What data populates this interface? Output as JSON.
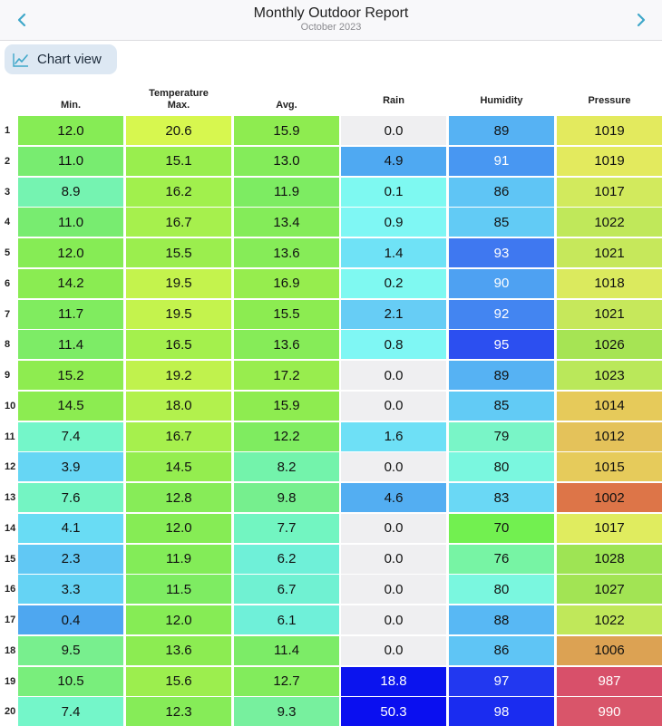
{
  "header": {
    "title": "Monthly Outdoor Report",
    "subtitle": "October 2023",
    "back_icon": "chevron-left-icon",
    "forward_icon": "chevron-right-icon",
    "accent": "#3fa7c9"
  },
  "toolbar": {
    "chart_view_label": "Chart view",
    "chart_icon": "line-chart-icon"
  },
  "table": {
    "group_header": "Temperature",
    "columns": [
      {
        "key": "min",
        "label": "Min."
      },
      {
        "key": "max",
        "label": "Max."
      },
      {
        "key": "avg",
        "label": "Avg."
      },
      {
        "key": "rain",
        "label": "Rain"
      },
      {
        "key": "humidity",
        "label": "Humidity"
      },
      {
        "key": "pressure",
        "label": "Pressure"
      }
    ],
    "rows": [
      {
        "day": "1",
        "cells": [
          {
            "v": "12.0",
            "bg": "#86ec55",
            "fg": "#111"
          },
          {
            "v": "20.6",
            "bg": "#d7f74f",
            "fg": "#111"
          },
          {
            "v": "15.9",
            "bg": "#8eec50",
            "fg": "#111"
          },
          {
            "v": "0.0",
            "bg": "#efeff1",
            "fg": "#111"
          },
          {
            "v": "89",
            "bg": "#56b2f3",
            "fg": "#111"
          },
          {
            "v": "1019",
            "bg": "#e3ea5e",
            "fg": "#111"
          }
        ]
      },
      {
        "day": "2",
        "cells": [
          {
            "v": "11.0",
            "bg": "#78ec70",
            "fg": "#111"
          },
          {
            "v": "15.1",
            "bg": "#99ee4e",
            "fg": "#111"
          },
          {
            "v": "13.0",
            "bg": "#84ec5a",
            "fg": "#111"
          },
          {
            "v": "4.9",
            "bg": "#4fa9f2",
            "fg": "#111"
          },
          {
            "v": "91",
            "bg": "#4897f2",
            "fg": "#ffffff"
          },
          {
            "v": "1019",
            "bg": "#e3ea5e",
            "fg": "#111"
          }
        ]
      },
      {
        "day": "3",
        "cells": [
          {
            "v": "8.9",
            "bg": "#75f3b1",
            "fg": "#111"
          },
          {
            "v": "16.2",
            "bg": "#a1f04d",
            "fg": "#111"
          },
          {
            "v": "11.9",
            "bg": "#7dec62",
            "fg": "#111"
          },
          {
            "v": "0.1",
            "bg": "#7ef9f1",
            "fg": "#111"
          },
          {
            "v": "86",
            "bg": "#5fc5f5",
            "fg": "#111"
          },
          {
            "v": "1017",
            "bg": "#d2ea5d",
            "fg": "#111"
          }
        ]
      },
      {
        "day": "4",
        "cells": [
          {
            "v": "11.0",
            "bg": "#78ec70",
            "fg": "#111"
          },
          {
            "v": "16.7",
            "bg": "#a6f04d",
            "fg": "#111"
          },
          {
            "v": "13.4",
            "bg": "#84ec59",
            "fg": "#111"
          },
          {
            "v": "0.9",
            "bg": "#7ff7f4",
            "fg": "#111"
          },
          {
            "v": "85",
            "bg": "#62cbf5",
            "fg": "#111"
          },
          {
            "v": "1022",
            "bg": "#c0e85a",
            "fg": "#111"
          }
        ]
      },
      {
        "day": "5",
        "cells": [
          {
            "v": "12.0",
            "bg": "#86ec55",
            "fg": "#111"
          },
          {
            "v": "15.5",
            "bg": "#9bee4e",
            "fg": "#111"
          },
          {
            "v": "13.6",
            "bg": "#86ec58",
            "fg": "#111"
          },
          {
            "v": "1.4",
            "bg": "#6fe2f6",
            "fg": "#111"
          },
          {
            "v": "93",
            "bg": "#3f78f0",
            "fg": "#ffffff"
          },
          {
            "v": "1021",
            "bg": "#c6e85b",
            "fg": "#111"
          }
        ]
      },
      {
        "day": "6",
        "cells": [
          {
            "v": "14.2",
            "bg": "#8aec52",
            "fg": "#111"
          },
          {
            "v": "19.5",
            "bg": "#c4f34d",
            "fg": "#111"
          },
          {
            "v": "16.9",
            "bg": "#96ed4e",
            "fg": "#111"
          },
          {
            "v": "0.2",
            "bg": "#7ff9f1",
            "fg": "#111"
          },
          {
            "v": "90",
            "bg": "#4ea1f2",
            "fg": "#ffffff"
          },
          {
            "v": "1018",
            "bg": "#dbea5e",
            "fg": "#111"
          }
        ]
      },
      {
        "day": "7",
        "cells": [
          {
            "v": "11.7",
            "bg": "#80ec5f",
            "fg": "#111"
          },
          {
            "v": "19.5",
            "bg": "#c4f34d",
            "fg": "#111"
          },
          {
            "v": "15.5",
            "bg": "#8cec51",
            "fg": "#111"
          },
          {
            "v": "2.1",
            "bg": "#67cdf5",
            "fg": "#111"
          },
          {
            "v": "92",
            "bg": "#4385f1",
            "fg": "#ffffff"
          },
          {
            "v": "1021",
            "bg": "#c6e85b",
            "fg": "#111"
          }
        ]
      },
      {
        "day": "8",
        "cells": [
          {
            "v": "11.4",
            "bg": "#7dec66",
            "fg": "#111"
          },
          {
            "v": "16.5",
            "bg": "#a4f04d",
            "fg": "#111"
          },
          {
            "v": "13.6",
            "bg": "#86ec58",
            "fg": "#111"
          },
          {
            "v": "0.8",
            "bg": "#7ff7f4",
            "fg": "#111"
          },
          {
            "v": "95",
            "bg": "#2c4ff0",
            "fg": "#ffffff"
          },
          {
            "v": "1026",
            "bg": "#a6e454",
            "fg": "#111"
          }
        ]
      },
      {
        "day": "9",
        "cells": [
          {
            "v": "15.2",
            "bg": "#8eec50",
            "fg": "#111"
          },
          {
            "v": "19.2",
            "bg": "#c0f24d",
            "fg": "#111"
          },
          {
            "v": "17.2",
            "bg": "#98ed4e",
            "fg": "#111"
          },
          {
            "v": "0.0",
            "bg": "#efeff1",
            "fg": "#111"
          },
          {
            "v": "89",
            "bg": "#56b2f3",
            "fg": "#111"
          },
          {
            "v": "1023",
            "bg": "#bae85a",
            "fg": "#111"
          }
        ]
      },
      {
        "day": "10",
        "cells": [
          {
            "v": "14.5",
            "bg": "#8cec51",
            "fg": "#111"
          },
          {
            "v": "18.0",
            "bg": "#b2f14d",
            "fg": "#111"
          },
          {
            "v": "15.9",
            "bg": "#8eec50",
            "fg": "#111"
          },
          {
            "v": "0.0",
            "bg": "#efeff1",
            "fg": "#111"
          },
          {
            "v": "85",
            "bg": "#62cbf5",
            "fg": "#111"
          },
          {
            "v": "1014",
            "bg": "#e6ca5a",
            "fg": "#111"
          }
        ]
      },
      {
        "day": "11",
        "cells": [
          {
            "v": "7.4",
            "bg": "#74f6c9",
            "fg": "#111"
          },
          {
            "v": "16.7",
            "bg": "#a6f04d",
            "fg": "#111"
          },
          {
            "v": "12.2",
            "bg": "#7fec60",
            "fg": "#111"
          },
          {
            "v": "1.6",
            "bg": "#6ee0f6",
            "fg": "#111"
          },
          {
            "v": "79",
            "bg": "#79f5c7",
            "fg": "#111"
          },
          {
            "v": "1012",
            "bg": "#e4c25a",
            "fg": "#111"
          }
        ]
      },
      {
        "day": "12",
        "cells": [
          {
            "v": "3.9",
            "bg": "#66d6f4",
            "fg": "#111"
          },
          {
            "v": "14.5",
            "bg": "#94ed4f",
            "fg": "#111"
          },
          {
            "v": "8.2",
            "bg": "#73f3ab",
            "fg": "#111"
          },
          {
            "v": "0.0",
            "bg": "#efeff1",
            "fg": "#111"
          },
          {
            "v": "80",
            "bg": "#7af7df",
            "fg": "#111"
          },
          {
            "v": "1015",
            "bg": "#e6cb5b",
            "fg": "#111"
          }
        ]
      },
      {
        "day": "13",
        "cells": [
          {
            "v": "7.6",
            "bg": "#74f4c3",
            "fg": "#111"
          },
          {
            "v": "12.8",
            "bg": "#87ec58",
            "fg": "#111"
          },
          {
            "v": "9.8",
            "bg": "#76ef8e",
            "fg": "#111"
          },
          {
            "v": "4.6",
            "bg": "#53aef2",
            "fg": "#111"
          },
          {
            "v": "83",
            "bg": "#6ad8f5",
            "fg": "#111"
          },
          {
            "v": "1002",
            "bg": "#dd7548",
            "fg": "#111"
          }
        ]
      },
      {
        "day": "14",
        "cells": [
          {
            "v": "4.1",
            "bg": "#69dcf4",
            "fg": "#111"
          },
          {
            "v": "12.0",
            "bg": "#86ec55",
            "fg": "#111"
          },
          {
            "v": "7.7",
            "bg": "#72f5c1",
            "fg": "#111"
          },
          {
            "v": "0.0",
            "bg": "#efeff1",
            "fg": "#111"
          },
          {
            "v": "70",
            "bg": "#72f050",
            "fg": "#111"
          },
          {
            "v": "1017",
            "bg": "#e0ec5f",
            "fg": "#111"
          }
        ]
      },
      {
        "day": "15",
        "cells": [
          {
            "v": "2.3",
            "bg": "#61c8f4",
            "fg": "#111"
          },
          {
            "v": "11.9",
            "bg": "#83ec58",
            "fg": "#111"
          },
          {
            "v": "6.2",
            "bg": "#6ff0d8",
            "fg": "#111"
          },
          {
            "v": "0.0",
            "bg": "#efeff1",
            "fg": "#111"
          },
          {
            "v": "76",
            "bg": "#77f4a4",
            "fg": "#111"
          },
          {
            "v": "1028",
            "bg": "#9ee454",
            "fg": "#111"
          }
        ]
      },
      {
        "day": "16",
        "cells": [
          {
            "v": "3.3",
            "bg": "#65d3f4",
            "fg": "#111"
          },
          {
            "v": "11.5",
            "bg": "#7eec62",
            "fg": "#111"
          },
          {
            "v": "6.7",
            "bg": "#70f1d2",
            "fg": "#111"
          },
          {
            "v": "0.0",
            "bg": "#efeff1",
            "fg": "#111"
          },
          {
            "v": "80",
            "bg": "#7af7df",
            "fg": "#111"
          },
          {
            "v": "1027",
            "bg": "#a2e454",
            "fg": "#111"
          }
        ]
      },
      {
        "day": "17",
        "cells": [
          {
            "v": "0.4",
            "bg": "#4ea7f0",
            "fg": "#111"
          },
          {
            "v": "12.0",
            "bg": "#86ec55",
            "fg": "#111"
          },
          {
            "v": "6.1",
            "bg": "#6ff0d9",
            "fg": "#111"
          },
          {
            "v": "0.0",
            "bg": "#efeff1",
            "fg": "#111"
          },
          {
            "v": "88",
            "bg": "#58b8f4",
            "fg": "#111"
          },
          {
            "v": "1022",
            "bg": "#c0e85a",
            "fg": "#111"
          }
        ]
      },
      {
        "day": "18",
        "cells": [
          {
            "v": "9.5",
            "bg": "#78ef8e",
            "fg": "#111"
          },
          {
            "v": "13.6",
            "bg": "#8cec52",
            "fg": "#111"
          },
          {
            "v": "11.4",
            "bg": "#7cec67",
            "fg": "#111"
          },
          {
            "v": "0.0",
            "bg": "#efeff1",
            "fg": "#111"
          },
          {
            "v": "86",
            "bg": "#5fc5f5",
            "fg": "#111"
          },
          {
            "v": "1006",
            "bg": "#dca253",
            "fg": "#111"
          }
        ]
      },
      {
        "day": "19",
        "cells": [
          {
            "v": "10.5",
            "bg": "#79ee7c",
            "fg": "#111"
          },
          {
            "v": "15.6",
            "bg": "#9cee4e",
            "fg": "#111"
          },
          {
            "v": "12.7",
            "bg": "#82ec5c",
            "fg": "#111"
          },
          {
            "v": "18.8",
            "bg": "#0b14ee",
            "fg": "#ffffff"
          },
          {
            "v": "97",
            "bg": "#2238f0",
            "fg": "#ffffff"
          },
          {
            "v": "987",
            "bg": "#d8506a",
            "fg": "#ffffff"
          }
        ]
      },
      {
        "day": "20",
        "cells": [
          {
            "v": "7.4",
            "bg": "#74f6c9",
            "fg": "#111"
          },
          {
            "v": "12.3",
            "bg": "#86ec58",
            "fg": "#111"
          },
          {
            "v": "9.3",
            "bg": "#77f09e",
            "fg": "#111"
          },
          {
            "v": "50.3",
            "bg": "#0a0ff0",
            "fg": "#ffffff"
          },
          {
            "v": "98",
            "bg": "#1a2cf0",
            "fg": "#ffffff"
          },
          {
            "v": "990",
            "bg": "#d9556a",
            "fg": "#ffffff"
          }
        ]
      }
    ]
  }
}
